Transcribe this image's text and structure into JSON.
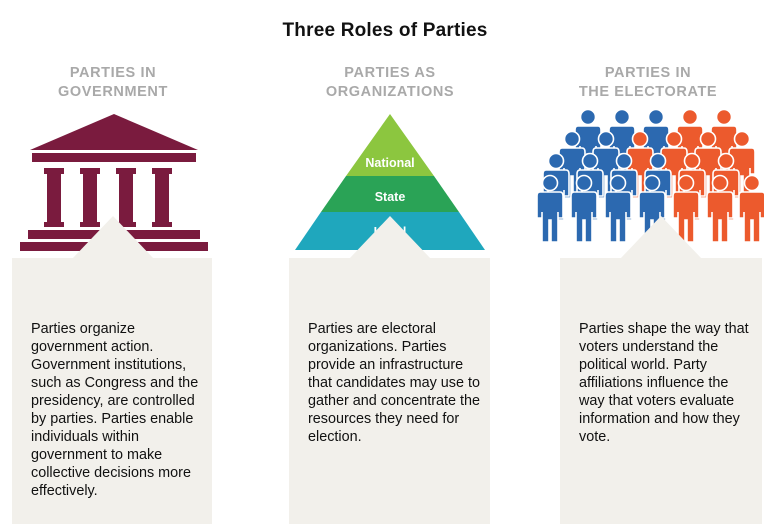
{
  "title": "Three Roles of Parties",
  "colors": {
    "temple": "#7a1b3e",
    "pyramid_top": "#8cc63f",
    "pyramid_mid": "#2aa356",
    "pyramid_bottom": "#1fa7bd",
    "people_blue": "#2c69b0",
    "people_red": "#ec5a2d",
    "heading_gray": "#a9a9a9",
    "card_bg": "#f2f0eb"
  },
  "columns": [
    {
      "heading_line1": "PARTIES IN",
      "heading_line2": "GOVERNMENT",
      "icon": "government-building-icon",
      "body": "Parties organize government action. Government institutions, such as Congress and the presidency, are controlled by parties. Parties enable individuals within government to make collective decisions more effectively."
    },
    {
      "heading_line1": "PARTIES AS",
      "heading_line2": "ORGANIZATIONS",
      "icon": "pyramid-icon",
      "pyramid_levels": [
        "National",
        "State",
        "Local"
      ],
      "body": "Parties are electoral organizations. Parties provide an infrastructure that candidates may use to gather and concentrate the resources they need for election."
    },
    {
      "heading_line1": "PARTIES IN",
      "heading_line2": "THE ELECTORATE",
      "icon": "crowd-of-voters-icon",
      "body": "Parties shape the way that voters understand the political world. Party affiliations influence the way that voters evaluate information and how they vote."
    }
  ]
}
